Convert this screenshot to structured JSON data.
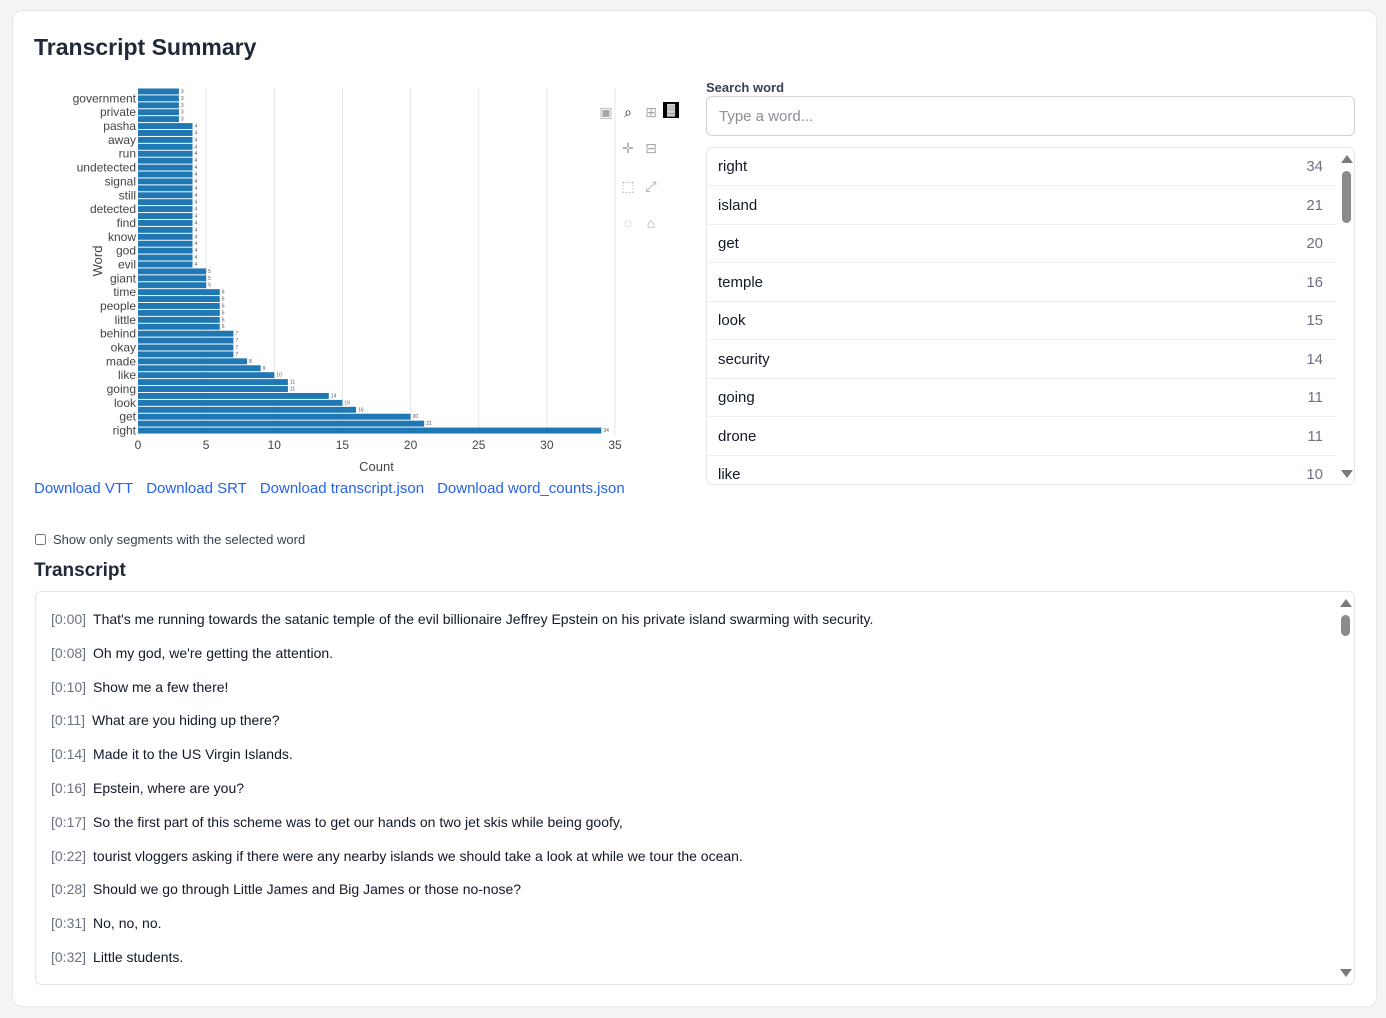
{
  "page": {
    "title": "Transcript Summary"
  },
  "chart_data": {
    "type": "bar",
    "orientation": "horizontal",
    "xlabel": "Count",
    "ylabel": "Word",
    "xlim": [
      0,
      35
    ],
    "x_ticks": [
      0,
      5,
      10,
      15,
      20,
      25,
      30,
      35
    ],
    "grid": true,
    "bar_color": "#1f77b4",
    "tick_labeled_categories": [
      "government",
      "private",
      "pasha",
      "away",
      "run",
      "undetected",
      "signal",
      "still",
      "detected",
      "find",
      "know",
      "god",
      "evil",
      "giant",
      "time",
      "people",
      "little",
      "behind",
      "okay",
      "made",
      "like",
      "going",
      "look",
      "get",
      "right"
    ],
    "bars_top_to_bottom": [
      3,
      3,
      3,
      3,
      3,
      4,
      4,
      4,
      4,
      4,
      4,
      4,
      4,
      4,
      4,
      4,
      4,
      4,
      4,
      4,
      4,
      4,
      4,
      4,
      4,
      4,
      5,
      5,
      5,
      6,
      6,
      6,
      6,
      6,
      6,
      7,
      7,
      7,
      7,
      8,
      9,
      10,
      11,
      11,
      14,
      15,
      16,
      20,
      21,
      34
    ]
  },
  "modebar": [
    "camera-icon",
    "zoom-icon",
    "zoom-in-icon",
    "plotly-logo-icon",
    "pan-icon",
    "zoom-out-icon",
    "box-select-icon",
    "autoscale-icon",
    "hover-icon",
    "home-icon"
  ],
  "downloads": [
    "Download VTT",
    "Download SRT",
    "Download transcript.json",
    "Download word_counts.json"
  ],
  "search": {
    "label": "Search word",
    "placeholder": "Type a word..."
  },
  "word_list": [
    {
      "word": "right",
      "count": "34"
    },
    {
      "word": "island",
      "count": "21"
    },
    {
      "word": "get",
      "count": "20"
    },
    {
      "word": "temple",
      "count": "16"
    },
    {
      "word": "look",
      "count": "15"
    },
    {
      "word": "security",
      "count": "14"
    },
    {
      "word": "going",
      "count": "11"
    },
    {
      "word": "drone",
      "count": "11"
    },
    {
      "word": "like",
      "count": "10"
    }
  ],
  "filter": {
    "label": "Show only segments with the selected word",
    "checked": false
  },
  "transcript": {
    "heading": "Transcript",
    "segments": [
      {
        "time": "[0:00]",
        "text": "That's me running towards the satanic temple of the evil billionaire Jeffrey Epstein on his private island swarming with security."
      },
      {
        "time": "[0:08]",
        "text": "Oh my god, we're getting the attention."
      },
      {
        "time": "[0:10]",
        "text": "Show me a few there!"
      },
      {
        "time": "[0:11]",
        "text": "What are you hiding up there?"
      },
      {
        "time": "[0:14]",
        "text": "Made it to the US Virgin Islands."
      },
      {
        "time": "[0:16]",
        "text": "Epstein, where are you?"
      },
      {
        "time": "[0:17]",
        "text": "So the first part of this scheme was to get our hands on two jet skis while being goofy,"
      },
      {
        "time": "[0:22]",
        "text": "tourist vloggers asking if there were any nearby islands we should take a look at while we tour the ocean."
      },
      {
        "time": "[0:28]",
        "text": "Should we go through Little James and Big James or those no-nose?"
      },
      {
        "time": "[0:31]",
        "text": "No, no, no."
      },
      {
        "time": "[0:32]",
        "text": "Little students."
      }
    ]
  }
}
